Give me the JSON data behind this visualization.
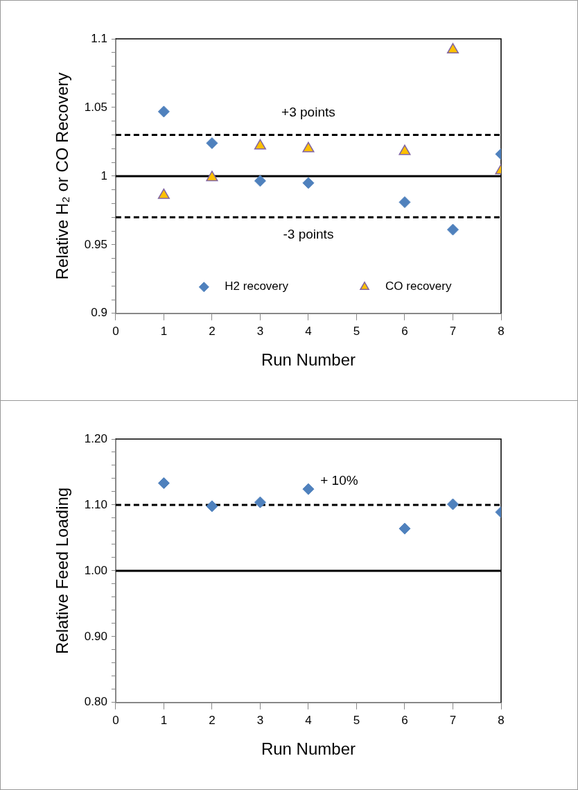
{
  "chart_data": [
    {
      "type": "scatter",
      "xlabel": "Run Number",
      "ylabel": "Relative H₂ or CO Recovery",
      "xlim": [
        0,
        8
      ],
      "xticks": [
        0,
        1,
        2,
        3,
        4,
        5,
        6,
        7,
        8
      ],
      "ylim": [
        0.9,
        1.1
      ],
      "yticks": [
        0.9,
        {
          "value": 0.91,
          "label": null
        },
        {
          "value": 0.92,
          "label": null
        },
        {
          "value": 0.93,
          "label": null
        },
        {
          "value": 0.94,
          "label": null
        },
        0.95,
        {
          "value": 0.96,
          "label": null
        },
        {
          "value": 0.97,
          "label": null
        },
        {
          "value": 0.98,
          "label": null
        },
        {
          "value": 0.99,
          "label": null
        },
        1,
        {
          "value": 1.01,
          "label": null
        },
        {
          "value": 1.02,
          "label": null
        },
        {
          "value": 1.03,
          "label": null
        },
        {
          "value": 1.04,
          "label": null
        },
        1.05,
        {
          "value": 1.06,
          "label": null
        },
        {
          "value": 1.07,
          "label": null
        },
        {
          "value": 1.08,
          "label": null
        },
        {
          "value": 1.09,
          "label": null
        },
        1.1
      ],
      "grid": false,
      "legend": "bottom",
      "series": [
        {
          "name": "H2 recovery",
          "color": "#4f81bd",
          "marker": "diamond",
          "x": [
            1,
            2,
            3,
            4,
            6,
            7,
            8
          ],
          "values": [
            1.047,
            1.024,
            0.9965,
            0.995,
            0.981,
            0.961,
            1.016
          ]
        },
        {
          "name": "CO recovery",
          "color": "#ffc000",
          "marker": "triangle",
          "x": [
            1,
            2,
            3,
            4,
            6,
            7,
            8
          ],
          "values": [
            0.986,
            0.999,
            1.022,
            1.02,
            1.018,
            1.092,
            1.004
          ]
        }
      ],
      "ref_lines": [
        {
          "axis": "y",
          "value": 1.03,
          "line_style": "dashed",
          "label": "+3 points"
        },
        {
          "axis": "y",
          "value": 1,
          "line_style": "solid"
        },
        {
          "axis": "y",
          "value": 0.97,
          "line_style": "dashed",
          "label": "-3 points"
        }
      ]
    },
    {
      "type": "scatter",
      "xlabel": "Run Number",
      "ylabel": "Relative Feed Loading",
      "xlim": [
        0,
        8
      ],
      "xticks": [
        0,
        1,
        2,
        3,
        4,
        5,
        6,
        7,
        8
      ],
      "ylim": [
        0.8,
        1.2
      ],
      "yticks": [
        {
          "value": 0.8,
          "label": "0.80"
        },
        {
          "value": 0.82,
          "label": null
        },
        {
          "value": 0.84,
          "label": null
        },
        {
          "value": 0.86,
          "label": null
        },
        {
          "value": 0.88,
          "label": null
        },
        {
          "value": 0.9,
          "label": "0.90"
        },
        {
          "value": 0.92,
          "label": null
        },
        {
          "value": 0.94,
          "label": null
        },
        {
          "value": 0.96,
          "label": null
        },
        {
          "value": 0.98,
          "label": null
        },
        {
          "value": 1,
          "label": "1.00"
        },
        {
          "value": 1.02,
          "label": null
        },
        {
          "value": 1.04,
          "label": null
        },
        {
          "value": 1.06,
          "label": null
        },
        {
          "value": 1.08,
          "label": null
        },
        {
          "value": 1.1,
          "label": "1.10"
        },
        {
          "value": 1.12,
          "label": null
        },
        {
          "value": 1.14,
          "label": null
        },
        {
          "value": 1.16,
          "label": null
        },
        {
          "value": 1.18,
          "label": null
        },
        {
          "value": 1.2,
          "label": "1.20"
        }
      ],
      "grid": false,
      "legend": false,
      "series": [
        {
          "color": "#4f81bd",
          "marker": "diamond",
          "x": [
            1,
            2,
            3,
            4,
            6,
            7,
            8
          ],
          "values": [
            1.133,
            1.098,
            1.104,
            1.124,
            1.064,
            1.101,
            1.089
          ]
        }
      ],
      "ref_lines": [
        {
          "axis": "y",
          "value": 1.1,
          "line_style": "dashed"
        },
        {
          "axis": "y",
          "value": 1,
          "line_style": "solid"
        }
      ],
      "annotations": [
        "+ 10%"
      ]
    }
  ]
}
